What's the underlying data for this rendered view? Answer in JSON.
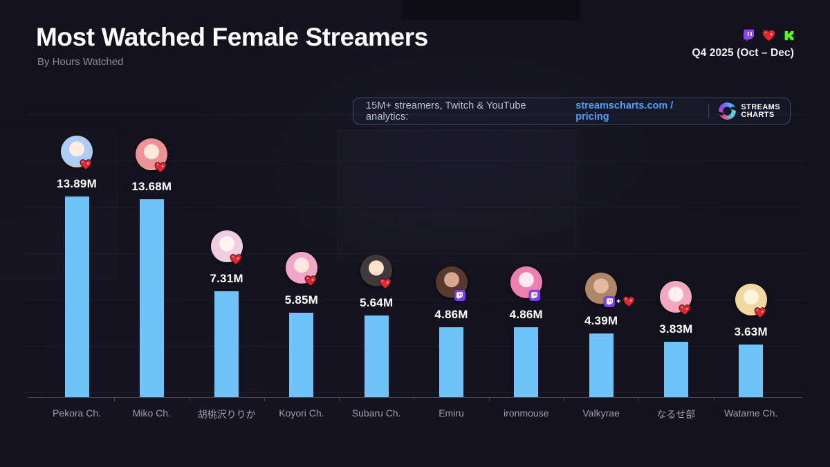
{
  "header": {
    "title": "Most Watched Female Streamers",
    "subtitle": "By Hours Watched",
    "period": "Q4 2025 (Oct – Dec)",
    "platform_icons": [
      "twitch-icon",
      "youtube-heart-icon",
      "kick-icon"
    ]
  },
  "promo": {
    "text": "15M+ streamers, Twitch & YouTube analytics:",
    "link": "streamscharts.com / pricing",
    "brand_line1": "STREAMS",
    "brand_line2": "CHARTS"
  },
  "colors": {
    "background": "#13121d",
    "bar": "#6fc3f9",
    "link_blue": "#4aa0f8",
    "twitch_purple": "#8c44f7",
    "youtube_red": "#e7252f",
    "kick_green": "#53fc18",
    "value_text": "#ffffff",
    "category_text": "#98a0ae"
  },
  "chart_data": {
    "type": "bar",
    "title": "Most Watched Female Streamers",
    "subtitle": "By Hours Watched",
    "period": "Q4 2025 (Oct – Dec)",
    "unit": "millions of hours watched",
    "xlabel": "",
    "ylabel": "Hours Watched",
    "ylim": [
      0,
      15
    ],
    "grid": "faint-horizontal",
    "legend": "none",
    "categories": [
      "Pekora Ch.",
      "Miko Ch.",
      "胡桃沢りりか",
      "Koyori Ch.",
      "Subaru Ch.",
      "Emiru",
      "ironmouse",
      "Valkyrae",
      "なるせ部",
      "Watame Ch."
    ],
    "values": [
      13.89,
      13.68,
      7.31,
      5.85,
      5.64,
      4.86,
      4.86,
      4.39,
      3.83,
      3.63
    ],
    "value_labels": [
      "13.89M",
      "13.68M",
      "7.31M",
      "5.85M",
      "5.64M",
      "4.86M",
      "4.86M",
      "4.39M",
      "3.83M",
      "3.63M"
    ],
    "streamers": [
      {
        "name": "Pekora Ch.",
        "label": "13.89M",
        "value": 13.89,
        "platforms": [
          "youtube"
        ],
        "avatar": {
          "face": "#ffece2",
          "hair": "#aecdf4",
          "outer": "#e6c45f"
        }
      },
      {
        "name": "Miko Ch.",
        "label": "13.68M",
        "value": 13.68,
        "platforms": [
          "youtube"
        ],
        "avatar": {
          "face": "#ffe7da",
          "hair": "#ef9298",
          "outer": "#ecd2b2"
        }
      },
      {
        "name": "胡桃沢りりか",
        "label": "7.31M",
        "value": 7.31,
        "platforms": [
          "youtube"
        ],
        "avatar": {
          "face": "#fff4f0",
          "hair": "#f0cde2",
          "outer": "#efe6ee"
        }
      },
      {
        "name": "Koyori Ch.",
        "label": "5.85M",
        "value": 5.85,
        "platforms": [
          "youtube"
        ],
        "avatar": {
          "face": "#ffe9de",
          "hair": "#f2a6c6",
          "outer": "#e08bb0"
        }
      },
      {
        "name": "Subaru Ch.",
        "label": "5.64M",
        "value": 5.64,
        "platforms": [
          "youtube"
        ],
        "avatar": {
          "face": "#ffe2cb",
          "hair": "#413a3c",
          "outer": "#2e2c33"
        }
      },
      {
        "name": "Emiru",
        "label": "4.86M",
        "value": 4.86,
        "platforms": [
          "twitch"
        ],
        "avatar": {
          "face": "#d8a68f",
          "hair": "#57392e",
          "outer": "#231b19"
        }
      },
      {
        "name": "ironmouse",
        "label": "4.86M",
        "value": 4.86,
        "platforms": [
          "twitch"
        ],
        "avatar": {
          "face": "#ffe9f0",
          "hair": "#ef7fb0",
          "outer": "#e25f9d"
        }
      },
      {
        "name": "Valkyrae",
        "label": "4.39M",
        "value": 4.39,
        "platforms": [
          "twitch",
          "youtube"
        ],
        "avatar": {
          "face": "#e2bb9e",
          "hair": "#b08668",
          "outer": "#3f2f26"
        }
      },
      {
        "name": "なるせ部",
        "label": "3.83M",
        "value": 3.83,
        "platforms": [
          "youtube"
        ],
        "avatar": {
          "face": "#ffeef2",
          "hair": "#f3a8bd",
          "outer": "#eb8fae"
        }
      },
      {
        "name": "Watame Ch.",
        "label": "3.63M",
        "value": 3.63,
        "platforms": [
          "youtube"
        ],
        "avatar": {
          "face": "#fff3de",
          "hair": "#f1d8a0",
          "outer": "#e5c488"
        }
      }
    ]
  }
}
